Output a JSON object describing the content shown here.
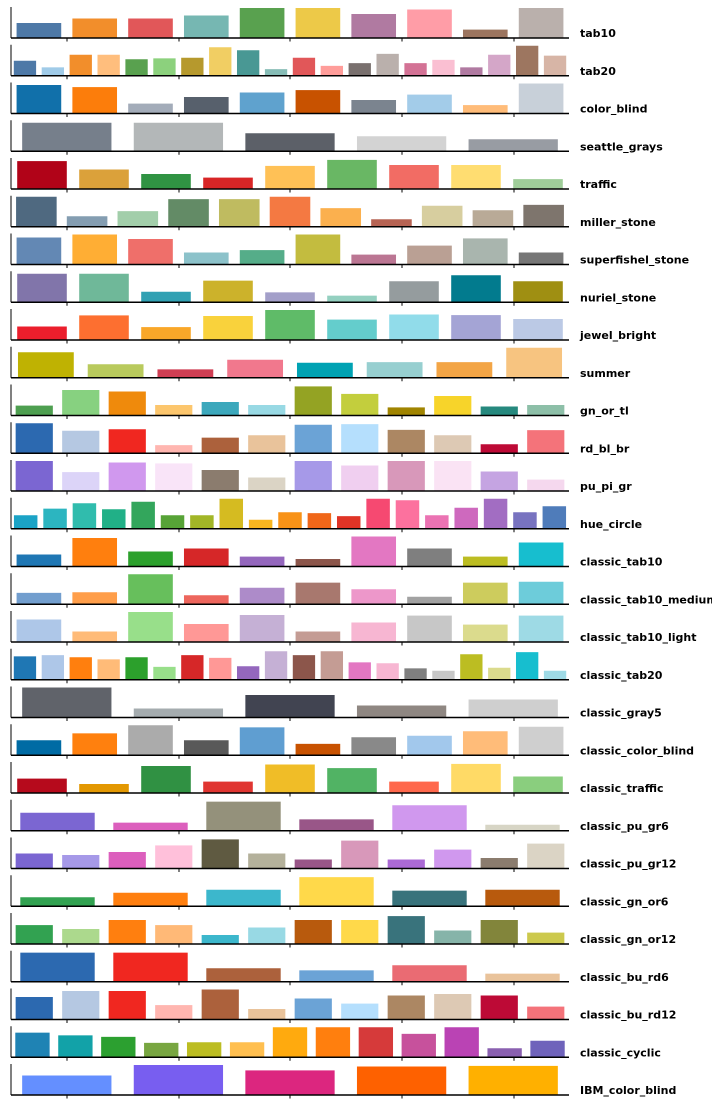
{
  "chart_data": [
    {
      "type": "bar",
      "title": "tab10",
      "values": [
        0.5,
        0.65,
        0.65,
        0.75,
        1.0,
        1.0,
        0.8,
        0.95,
        0.28,
        1.0
      ],
      "colors": [
        "#4e79a7",
        "#f28e2b",
        "#e15759",
        "#76b7b2",
        "#59a14f",
        "#edc948",
        "#b07aa1",
        "#ff9da7",
        "#9c755f",
        "#bab0ac"
      ]
    },
    {
      "type": "bar",
      "title": "tab20",
      "values": [
        0.5,
        0.28,
        0.7,
        0.7,
        0.55,
        0.58,
        0.6,
        0.95,
        0.85,
        0.22,
        0.6,
        0.33,
        0.42,
        0.73,
        0.42,
        0.53,
        0.28,
        0.7,
        1.0,
        0.67
      ],
      "colors": [
        "#4e79a7",
        "#a0cbe8",
        "#f28e2b",
        "#ffbe7d",
        "#59a14f",
        "#8cd17d",
        "#b6992d",
        "#f1ce63",
        "#499894",
        "#86bcb6",
        "#e15759",
        "#ff9d9a",
        "#79706e",
        "#bab0ac",
        "#d37295",
        "#fabfd2",
        "#b07aa1",
        "#d4a6c8",
        "#9d7660",
        "#d7b5a6"
      ]
    },
    {
      "type": "bar",
      "title": "color_blind",
      "values": [
        0.95,
        0.88,
        0.33,
        0.55,
        0.7,
        0.78,
        0.45,
        0.63,
        0.28,
        1.0
      ],
      "colors": [
        "#1170aa",
        "#fc7d0b",
        "#a3acb9",
        "#57606c",
        "#5fa2ce",
        "#c85200",
        "#7b848f",
        "#a3cce9",
        "#ffbc79",
        "#c8d0d9"
      ]
    },
    {
      "type": "bar",
      "title": "seattle_grays",
      "values": [
        0.95,
        0.95,
        0.6,
        0.5,
        0.4
      ],
      "colors": [
        "#767f8b",
        "#b3b7b8",
        "#5c6068",
        "#d3d3d3",
        "#989ca3"
      ]
    },
    {
      "type": "bar",
      "title": "traffic",
      "values": [
        0.93,
        0.65,
        0.5,
        0.38,
        0.77,
        0.97,
        0.8,
        0.8,
        0.33
      ],
      "colors": [
        "#b10318",
        "#dba13a",
        "#309343",
        "#d82526",
        "#ffc156",
        "#69b764",
        "#f26c64",
        "#ffdd71",
        "#9fcd99"
      ]
    },
    {
      "type": "bar",
      "title": "miller_stone",
      "values": [
        1.0,
        0.35,
        0.52,
        0.92,
        0.92,
        1.0,
        0.62,
        0.25,
        0.7,
        0.55,
        0.73
      ],
      "colors": [
        "#4f6980",
        "#849db1",
        "#a2ceaa",
        "#638b66",
        "#bfbb60",
        "#f47942",
        "#fbb04e",
        "#b66353",
        "#d7ce9f",
        "#b9aa97",
        "#7e756d"
      ]
    },
    {
      "type": "bar",
      "title": "superfishel_stone",
      "values": [
        0.9,
        1.0,
        0.85,
        0.4,
        0.48,
        1.0,
        0.33,
        0.63,
        0.87,
        0.4
      ],
      "colors": [
        "#6388b4",
        "#ffae34",
        "#ef6f6a",
        "#8cc2ca",
        "#55ad89",
        "#c3bc3f",
        "#bb7693",
        "#baa094",
        "#a9b5ae",
        "#767676"
      ]
    },
    {
      "type": "bar",
      "title": "nuriel_stone",
      "values": [
        0.95,
        0.95,
        0.35,
        0.72,
        0.33,
        0.22,
        0.7,
        0.9,
        0.7
      ],
      "colors": [
        "#8175aa",
        "#6fb899",
        "#31a1b3",
        "#ccb22b",
        "#a39fc9",
        "#94d0c0",
        "#959c9e",
        "#027b8e",
        "#9f8f12"
      ]
    },
    {
      "type": "bar",
      "title": "jewel_bright",
      "values": [
        0.45,
        0.82,
        0.43,
        0.8,
        1.0,
        0.68,
        0.85,
        0.83,
        0.7
      ],
      "colors": [
        "#eb1e2c",
        "#fd6f30",
        "#f9a729",
        "#f9d23c",
        "#5fbb68",
        "#64cdcc",
        "#91dcea",
        "#a4a4d5",
        "#bbc9e5"
      ]
    },
    {
      "type": "bar",
      "title": "summer",
      "values": [
        0.85,
        0.45,
        0.28,
        0.6,
        0.5,
        0.52,
        0.52,
        1.0
      ],
      "colors": [
        "#bfb202",
        "#b9ca5d",
        "#cf3e53",
        "#f1788d",
        "#00a2b3",
        "#97cfd0",
        "#f3a546",
        "#f7c480"
      ]
    },
    {
      "type": "bar",
      "title": "gn_or_tl",
      "values": [
        0.33,
        0.85,
        0.8,
        0.35,
        0.45,
        0.35,
        0.97,
        0.72,
        0.27,
        0.65,
        0.3,
        0.35
      ],
      "colors": [
        "#4e9f50",
        "#87d180",
        "#ef8a0c",
        "#fcc66d",
        "#3ca8bc",
        "#98d9e4",
        "#94a323",
        "#c3ce3d",
        "#a08400",
        "#f7d42a",
        "#26897e",
        "#8dbfa8"
      ]
    },
    {
      "type": "bar",
      "title": "rd_bl_br",
      "values": [
        1.0,
        0.75,
        0.8,
        0.27,
        0.52,
        0.6,
        0.95,
        0.97,
        0.78,
        0.6,
        0.3,
        0.77
      ],
      "colors": [
        "#2c69b0",
        "#b5c8e2",
        "#f02720",
        "#ffb6b0",
        "#ac613c",
        "#e9c39b",
        "#6ba3d6",
        "#b5dffd",
        "#ac8763",
        "#ddc9b4",
        "#bd0a36",
        "#f4737a"
      ]
    },
    {
      "type": "bar",
      "title": "pu_pi_gr",
      "values": [
        1.0,
        0.63,
        0.95,
        0.92,
        0.7,
        0.45,
        1.0,
        0.85,
        1.0,
        1.0,
        0.65,
        0.38
      ],
      "colors": [
        "#7b66d2",
        "#dcd4f8",
        "#d098ee",
        "#f9e4f8",
        "#8b7c6e",
        "#dbd4c5",
        "#a699e8",
        "#f0cff0",
        "#d898ba",
        "#fae3f4",
        "#c5a4e2",
        "#f5d8ee"
      ]
    },
    {
      "type": "bar",
      "title": "hue_circle",
      "values": [
        0.45,
        0.67,
        0.85,
        0.65,
        0.9,
        0.45,
        0.45,
        1.0,
        0.3,
        0.55,
        0.52,
        0.42,
        1.0,
        0.95,
        0.45,
        0.7,
        1.0,
        0.55,
        0.75
      ],
      "colors": [
        "#1ba3c6",
        "#2cb5c0",
        "#30bcad",
        "#21b087",
        "#33a65c",
        "#57a337",
        "#a2b627",
        "#d5bb21",
        "#f8b620",
        "#f89217",
        "#f06719",
        "#e03426",
        "#f64971",
        "#fc719e",
        "#eb73b3",
        "#ce69be",
        "#a26dc2",
        "#7873c0",
        "#4f7cba"
      ]
    },
    {
      "type": "bar",
      "title": "classic_tab10",
      "values": [
        0.4,
        0.95,
        0.5,
        0.6,
        0.33,
        0.25,
        1.0,
        0.6,
        0.33,
        0.8
      ],
      "colors": [
        "#1f77b4",
        "#ff7f0e",
        "#2ca02c",
        "#d62728",
        "#9467bd",
        "#8c564b",
        "#e377c2",
        "#7f7f7f",
        "#bcbd22",
        "#17becf"
      ]
    },
    {
      "type": "bar",
      "title": "classic_tab10_medium",
      "values": [
        0.38,
        0.4,
        1.0,
        0.3,
        0.55,
        0.72,
        0.5,
        0.25,
        0.72,
        0.75
      ],
      "colors": [
        "#729ece",
        "#ff9e4a",
        "#67bf5c",
        "#ed665d",
        "#ad8bc9",
        "#a8786e",
        "#ed97ca",
        "#a2a2a2",
        "#cdcc5d",
        "#6dccda"
      ]
    },
    {
      "type": "bar",
      "title": "classic_tab10_light",
      "values": [
        0.75,
        0.35,
        1.0,
        0.6,
        0.9,
        0.35,
        0.65,
        0.88,
        0.58,
        0.88
      ],
      "colors": [
        "#aec7e8",
        "#ffbb78",
        "#98df8a",
        "#ff9896",
        "#c5b0d5",
        "#c49c94",
        "#f7b6d2",
        "#c7c7c7",
        "#dbdb8d",
        "#9edae5"
      ]
    },
    {
      "type": "bar",
      "title": "classic_tab20",
      "values": [
        0.78,
        0.82,
        0.75,
        0.68,
        0.75,
        0.43,
        0.82,
        0.73,
        0.45,
        0.95,
        0.82,
        0.95,
        0.58,
        0.55,
        0.38,
        0.3,
        0.85,
        0.4,
        0.92,
        0.3
      ],
      "colors": [
        "#1f77b4",
        "#aec7e8",
        "#ff7f0e",
        "#ffbb78",
        "#2ca02c",
        "#98df8a",
        "#d62728",
        "#ff9896",
        "#9467bd",
        "#c5b0d5",
        "#8c564b",
        "#c49c94",
        "#e377c2",
        "#f7b6d2",
        "#7f7f7f",
        "#c7c7c7",
        "#bcbd22",
        "#dbdb8d",
        "#17becf",
        "#9edae5"
      ]
    },
    {
      "type": "bar",
      "title": "classic_gray5",
      "values": [
        1.0,
        0.3,
        0.75,
        0.4,
        0.6
      ],
      "colors": [
        "#60636a",
        "#a5acaf",
        "#414451",
        "#8f8782",
        "#cfcfcf"
      ]
    },
    {
      "type": "bar",
      "title": "classic_color_blind",
      "values": [
        0.5,
        0.73,
        1.0,
        0.5,
        0.93,
        0.38,
        0.6,
        0.65,
        0.8,
        0.95
      ],
      "colors": [
        "#006ba4",
        "#ff800e",
        "#ababab",
        "#595959",
        "#5f9ed1",
        "#c85200",
        "#898989",
        "#a2c8ec",
        "#ffbc79",
        "#cfcfcf"
      ]
    },
    {
      "type": "bar",
      "title": "classic_traffic",
      "values": [
        0.48,
        0.3,
        0.9,
        0.38,
        0.95,
        0.83,
        0.38,
        0.97,
        0.55
      ],
      "colors": [
        "#b60a1c",
        "#e39802",
        "#309143",
        "#e03531",
        "#f0bd27",
        "#51b364",
        "#ff684c",
        "#ffda66",
        "#8ace7e"
      ]
    },
    {
      "type": "bar",
      "title": "classic_pu_gr6",
      "values": [
        0.6,
        0.27,
        0.97,
        0.38,
        0.85,
        0.2
      ],
      "colors": [
        "#7b66d2",
        "#dc5fbd",
        "#94917b",
        "#995688",
        "#d098ee",
        "#d7d5c5"
      ]
    },
    {
      "type": "bar",
      "title": "classic_pu_gr12",
      "values": [
        0.5,
        0.45,
        0.55,
        0.77,
        0.97,
        0.5,
        0.3,
        0.93,
        0.3,
        0.63,
        0.35,
        0.83
      ],
      "colors": [
        "#7b66d2",
        "#a699e8",
        "#dc5fbd",
        "#ffc0da",
        "#5f5a41",
        "#b4b19b",
        "#995688",
        "#d898ba",
        "#ab6ad5",
        "#d098ee",
        "#8b7c6e",
        "#dbd4c5"
      ]
    },
    {
      "type": "bar",
      "title": "classic_gn_or6",
      "values": [
        0.3,
        0.45,
        0.55,
        0.97,
        0.52,
        0.55
      ],
      "colors": [
        "#32a251",
        "#ff7f0f",
        "#3cb7cc",
        "#ffd94a",
        "#39737c",
        "#b85a0d"
      ]
    },
    {
      "type": "bar",
      "title": "classic_gn_or12",
      "values": [
        0.63,
        0.5,
        0.8,
        0.63,
        0.3,
        0.55,
        0.8,
        0.8,
        0.93,
        0.45,
        0.8,
        0.38
      ],
      "colors": [
        "#32a251",
        "#acd98d",
        "#ff7f0f",
        "#ffb977",
        "#3cb7cc",
        "#98d9e4",
        "#b85a0d",
        "#ffd94a",
        "#39737c",
        "#86b4a9",
        "#82853b",
        "#ccc94d"
      ]
    },
    {
      "type": "bar",
      "title": "classic_bu_rd6",
      "values": [
        0.97,
        0.97,
        0.45,
        0.38,
        0.55,
        0.27
      ],
      "colors": [
        "#2c69b0",
        "#f02720",
        "#ac613c",
        "#6ba3d6",
        "#ea6b73",
        "#e9c39b"
      ]
    },
    {
      "type": "bar",
      "title": "classic_bu_rd12",
      "values": [
        0.75,
        0.95,
        0.95,
        0.48,
        1.0,
        0.35,
        0.7,
        0.53,
        0.8,
        0.85,
        0.8,
        0.43
      ],
      "colors": [
        "#2c69b0",
        "#b5c8e2",
        "#f02720",
        "#ffb6b0",
        "#ac613c",
        "#e9c39b",
        "#6ba3d6",
        "#b5dffd",
        "#ac8763",
        "#ddc9b4",
        "#bd0a36",
        "#f4737a"
      ]
    },
    {
      "type": "bar",
      "title": "classic_cyclic",
      "values": [
        0.82,
        0.73,
        0.68,
        0.48,
        0.5,
        0.5,
        1.0,
        1.0,
        1.0,
        0.78,
        1.0,
        0.3,
        0.55
      ],
      "colors": [
        "#1f83b4",
        "#12a2a8",
        "#2ca030",
        "#78a641",
        "#bcbd22",
        "#ffbf50",
        "#ffaa0e",
        "#ff7f0e",
        "#d63a3a",
        "#c7519c",
        "#ba43b4",
        "#8a60b0",
        "#6f63bb"
      ]
    },
    {
      "type": "bar",
      "title": "IBM_color_blind",
      "values": [
        0.65,
        1.0,
        0.82,
        0.95,
        0.97
      ],
      "colors": [
        "#648fff",
        "#785ef0",
        "#dc267f",
        "#fe6100",
        "#ffb000"
      ]
    }
  ]
}
